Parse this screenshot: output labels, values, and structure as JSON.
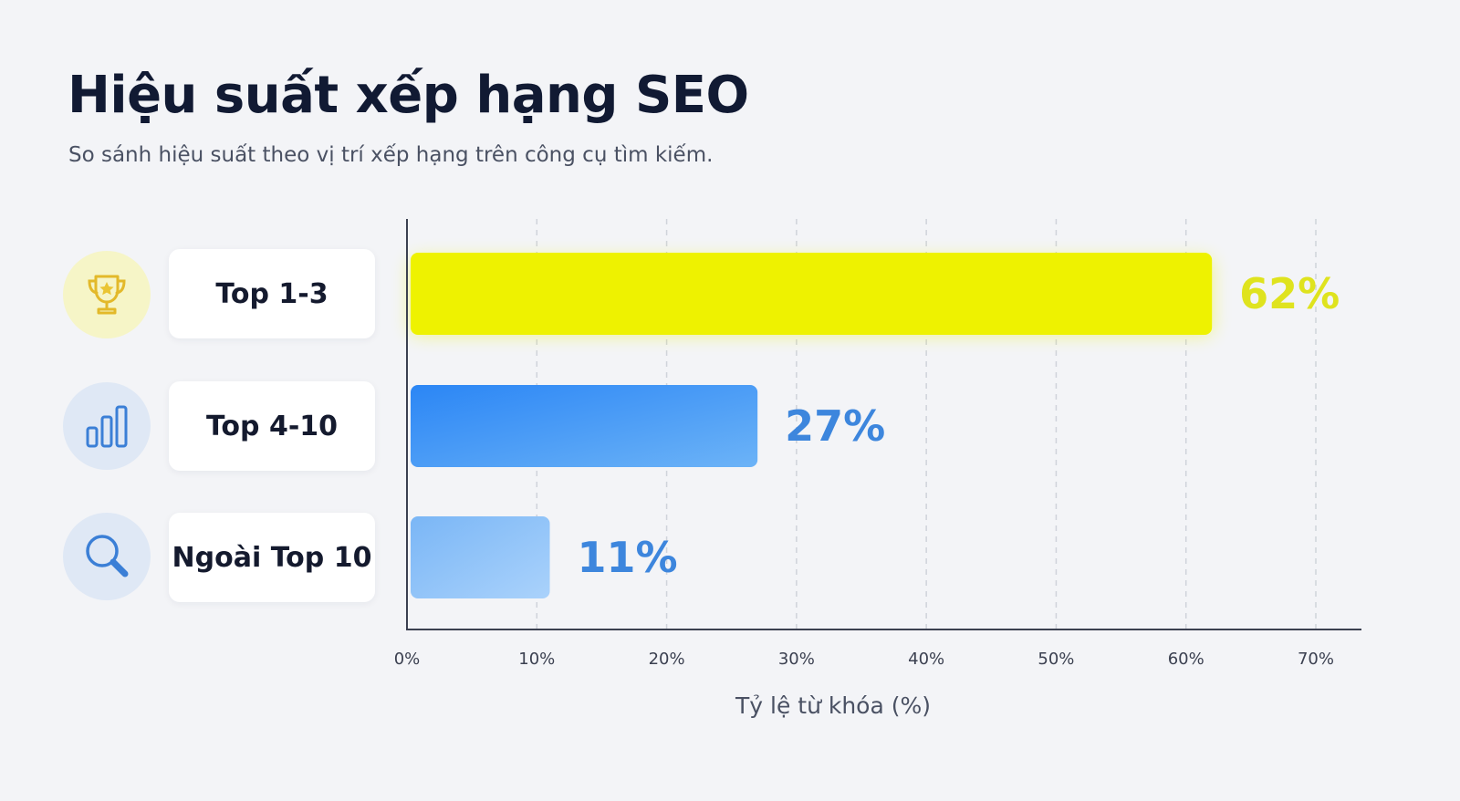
{
  "header": {
    "title": "Hiệu suất xếp hạng SEO",
    "subtitle": "So sánh hiệu suất theo vị trí xếp hạng trên công cụ tìm kiếm."
  },
  "rows": [
    {
      "label": "Top 1-3",
      "icon": "trophy-icon"
    },
    {
      "label": "Top 4-10",
      "icon": "bar-chart-icon"
    },
    {
      "label": "Ngoài Top 10",
      "icon": "search-icon"
    }
  ],
  "colors": {
    "top13": "#eef200",
    "top13_label": "#dfe31e",
    "top410_start": "#2b86f5",
    "top410_end": "#6cb3f7",
    "outside_start": "#7ab6f6",
    "outside_end": "#aad2fb",
    "blue_label": "#3d86dd",
    "axis": "#3b4050",
    "grid": "#cfd3da"
  },
  "chart_data": {
    "type": "bar",
    "orientation": "horizontal",
    "categories": [
      "Top 1-3",
      "Top 4-10",
      "Ngoài Top 10"
    ],
    "values": [
      62,
      27,
      11
    ],
    "value_labels": [
      "62%",
      "27%",
      "11%"
    ],
    "title": "Hiệu suất xếp hạng SEO",
    "subtitle": "So sánh hiệu suất theo vị trí xếp hạng trên công cụ tìm kiếm.",
    "xlabel": "Tỷ lệ từ khóa (%)",
    "ylabel": "",
    "xlim": [
      0,
      70
    ],
    "ticks": [
      0,
      10,
      20,
      30,
      40,
      50,
      60,
      70
    ],
    "tick_labels": [
      "0%",
      "10%",
      "20%",
      "30%",
      "40%",
      "50%",
      "60%",
      "70%"
    ],
    "grid": true,
    "legend": "none"
  }
}
